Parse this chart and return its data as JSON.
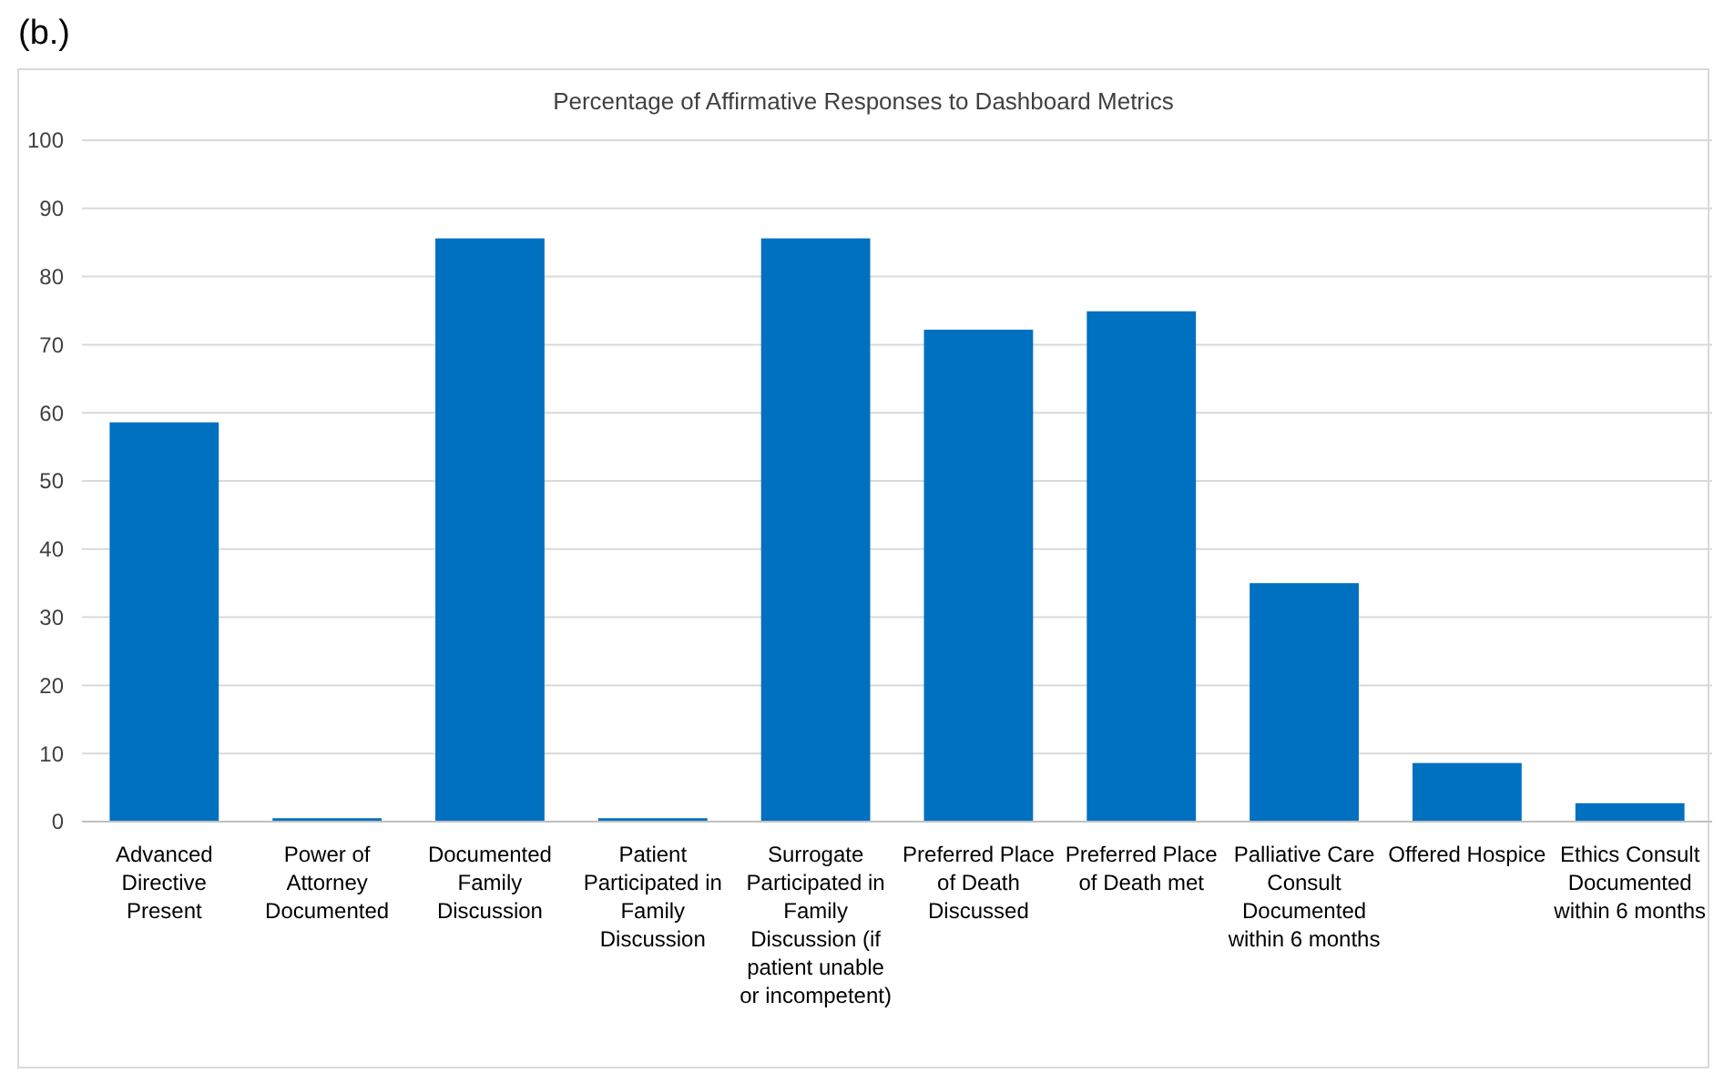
{
  "chart_data": {
    "type": "bar",
    "title": "Percentage of Affirmative Responses to Dashboard Metrics",
    "annotations": [
      "(b.)"
    ],
    "categories": [
      "Advanced Directive Present",
      "Power of Attorney Documented",
      "Documented Family Discussion",
      "Patient Participated in Family Discussion",
      "Surrogate Participated in Family Discussion (if patient unable or incompetent)",
      "Preferred Place of Death Discussed",
      "Preferred Place of Death met",
      "Palliative Care Consult Documented within 6 months",
      "Offered Hospice",
      "Ethics Consult Documented within 6 months"
    ],
    "values": [
      58.6,
      0.5,
      85.6,
      0.5,
      85.6,
      72.2,
      74.9,
      35,
      8.6,
      2.7
    ],
    "color": "#0070c0",
    "ylim": [
      0,
      100
    ],
    "yticks": [
      0,
      10,
      20,
      30,
      40,
      50,
      60,
      70,
      80,
      90,
      100
    ],
    "grid": "y"
  }
}
